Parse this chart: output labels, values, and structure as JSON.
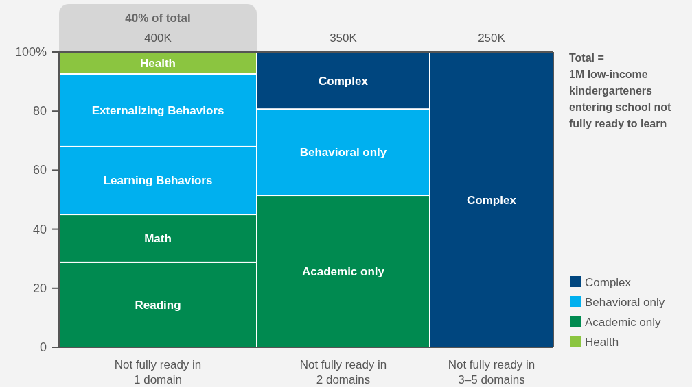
{
  "chart_data": {
    "type": "bar",
    "stacked": true,
    "categories": [
      "Not fully ready in 1 domain",
      "Not fully ready in 2 domains",
      "Not fully ready in 3–5 domains"
    ],
    "series": [
      {
        "name": "Reading",
        "color": "#008a50",
        "values": [
          28.8,
          null,
          null
        ]
      },
      {
        "name": "Math",
        "color": "#008a50",
        "values": [
          16.2,
          null,
          null
        ]
      },
      {
        "name": "Learning Behaviors",
        "color": "#00b0ef",
        "values": [
          23,
          null,
          null
        ]
      },
      {
        "name": "Externalizing Behaviors",
        "color": "#00b0ef",
        "values": [
          24.6,
          null,
          null
        ]
      },
      {
        "name": "Health",
        "color": "#8bc540",
        "values": [
          7.4,
          null,
          null
        ]
      },
      {
        "name": "Academic only",
        "color": "#008a50",
        "values": [
          null,
          51.5,
          null
        ]
      },
      {
        "name": "Behavioral only",
        "color": "#00b0ef",
        "values": [
          null,
          29.2,
          null
        ]
      },
      {
        "name": "Complex",
        "color": "#00467f",
        "values": [
          null,
          19.3,
          100
        ]
      }
    ],
    "ylim": [
      0,
      100
    ],
    "yticks": [
      0,
      20,
      40,
      60,
      80,
      {
        "value": 100,
        "label": "100%"
      }
    ],
    "legend": "bottom right",
    "annotations": [
      "40% of total",
      "400K",
      "350K",
      "250K",
      "Total = 1M low-income kindergarteners entering school not fully ready to learn"
    ]
  }
}
